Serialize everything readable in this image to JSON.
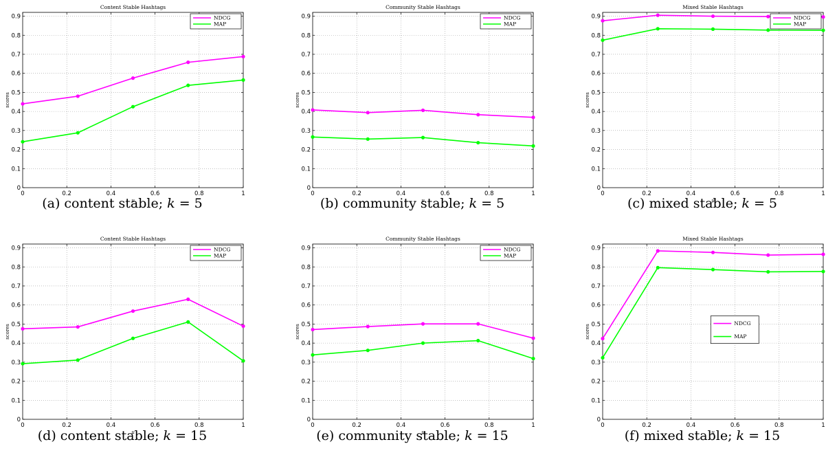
{
  "chart_data": [
    {
      "type": "line",
      "title": "Content Stable Hashtags",
      "xlabel": "μ",
      "ylabel": "scores",
      "x": [
        0,
        0.25,
        0.5,
        0.75,
        1
      ],
      "xlim": [
        0,
        1
      ],
      "ylim": [
        0,
        0.92
      ],
      "xticks": [
        "0",
        "0.2",
        "0.4",
        "0.6",
        "0.8",
        "1"
      ],
      "yticks": [
        "0",
        "0.1",
        "0.2",
        "0.3",
        "0.4",
        "0.5",
        "0.6",
        "0.7",
        "0.8",
        "0.9"
      ],
      "grid": true,
      "legend_position": "top-right",
      "series": [
        {
          "name": "NDCG",
          "color": "#ff00ff",
          "values": [
            0.44,
            0.48,
            0.575,
            0.658,
            0.688
          ]
        },
        {
          "name": "MAP",
          "color": "#00ff00",
          "values": [
            0.241,
            0.288,
            0.425,
            0.537,
            0.565
          ]
        }
      ],
      "caption": {
        "label": "(a) content stable;",
        "var": "k",
        "eq": " = 5"
      }
    },
    {
      "type": "line",
      "title": "Community Stable Hashtags",
      "xlabel": "μ",
      "ylabel": "scores",
      "x": [
        0,
        0.25,
        0.5,
        0.75,
        1
      ],
      "xlim": [
        0,
        1
      ],
      "ylim": [
        0,
        0.92
      ],
      "xticks": [
        "0",
        "0.2",
        "0.4",
        "0.6",
        "0.8",
        "1"
      ],
      "yticks": [
        "0",
        "0.1",
        "0.2",
        "0.3",
        "0.4",
        "0.5",
        "0.6",
        "0.7",
        "0.8",
        "0.9"
      ],
      "grid": true,
      "legend_position": "top-right",
      "series": [
        {
          "name": "NDCG",
          "color": "#ff00ff",
          "values": [
            0.408,
            0.394,
            0.406,
            0.383,
            0.369
          ]
        },
        {
          "name": "MAP",
          "color": "#00ff00",
          "values": [
            0.266,
            0.255,
            0.263,
            0.236,
            0.219
          ]
        }
      ],
      "caption": {
        "label": "(b) community stable;",
        "var": "k",
        "eq": " = 5"
      }
    },
    {
      "type": "line",
      "title": "Mixed Stable Hashtags",
      "xlabel": "μ",
      "ylabel": "scores",
      "x": [
        0,
        0.25,
        0.5,
        0.75,
        1
      ],
      "xlim": [
        0,
        1
      ],
      "ylim": [
        0,
        0.92
      ],
      "xticks": [
        "0",
        "0.2",
        "0.4",
        "0.6",
        "0.8",
        "1"
      ],
      "yticks": [
        "0",
        "0.1",
        "0.2",
        "0.3",
        "0.4",
        "0.5",
        "0.6",
        "0.7",
        "0.8",
        "0.9"
      ],
      "grid": true,
      "legend_position": "top-right",
      "series": [
        {
          "name": "NDCG",
          "color": "#ff00ff",
          "values": [
            0.876,
            0.905,
            0.9,
            0.898,
            0.896
          ]
        },
        {
          "name": "MAP",
          "color": "#00ff00",
          "values": [
            0.774,
            0.834,
            0.832,
            0.827,
            0.826
          ]
        }
      ],
      "caption": {
        "label": "(c) mixed stable;",
        "var": "k",
        "eq": " = 5"
      }
    },
    {
      "type": "line",
      "title": "Content Stable Hashtags",
      "xlabel": "μ",
      "ylabel": "scores",
      "x": [
        0,
        0.25,
        0.5,
        0.75,
        1
      ],
      "xlim": [
        0,
        1
      ],
      "ylim": [
        0,
        0.92
      ],
      "xticks": [
        "0",
        "0.2",
        "0.4",
        "0.6",
        "0.8",
        "1"
      ],
      "yticks": [
        "0",
        "0.1",
        "0.2",
        "0.3",
        "0.4",
        "0.5",
        "0.6",
        "0.7",
        "0.8",
        "0.9"
      ],
      "grid": true,
      "legend_position": "top-right",
      "series": [
        {
          "name": "NDCG",
          "color": "#ff00ff",
          "values": [
            0.475,
            0.485,
            0.568,
            0.63,
            0.489
          ]
        },
        {
          "name": "MAP",
          "color": "#00ff00",
          "values": [
            0.292,
            0.311,
            0.425,
            0.511,
            0.307
          ]
        }
      ],
      "caption": {
        "label": "(d) content stable;",
        "var": "k",
        "eq": " = 15"
      }
    },
    {
      "type": "line",
      "title": "Community Stable Hashtags",
      "xlabel": "μ",
      "ylabel": "scores",
      "x": [
        0,
        0.25,
        0.5,
        0.75,
        1
      ],
      "xlim": [
        0,
        1
      ],
      "ylim": [
        0,
        0.92
      ],
      "xticks": [
        "0",
        "0.2",
        "0.4",
        "0.6",
        "0.8",
        "1"
      ],
      "yticks": [
        "0",
        "0.1",
        "0.2",
        "0.3",
        "0.4",
        "0.5",
        "0.6",
        "0.7",
        "0.8",
        "0.9"
      ],
      "grid": true,
      "legend_position": "top-right",
      "series": [
        {
          "name": "NDCG",
          "color": "#ff00ff",
          "values": [
            0.471,
            0.487,
            0.501,
            0.501,
            0.426
          ]
        },
        {
          "name": "MAP",
          "color": "#00ff00",
          "values": [
            0.338,
            0.362,
            0.4,
            0.413,
            0.319
          ]
        }
      ],
      "caption": {
        "label": "(e) community stable;",
        "var": "k",
        "eq": " = 15"
      }
    },
    {
      "type": "line",
      "title": "Mixed Stable Hashtags",
      "xlabel": "μ",
      "ylabel": "scores",
      "x": [
        0,
        0.25,
        0.5,
        0.75,
        1
      ],
      "xlim": [
        0,
        1
      ],
      "ylim": [
        0,
        0.92
      ],
      "xticks": [
        "0",
        "0.2",
        "0.4",
        "0.6",
        "0.8",
        "1"
      ],
      "yticks": [
        "0",
        "0.1",
        "0.2",
        "0.3",
        "0.4",
        "0.5",
        "0.6",
        "0.7",
        "0.8",
        "0.9"
      ],
      "grid": true,
      "legend_position": "center",
      "series": [
        {
          "name": "NDCG",
          "color": "#ff00ff",
          "values": [
            0.424,
            0.884,
            0.876,
            0.862,
            0.866
          ]
        },
        {
          "name": "MAP",
          "color": "#00ff00",
          "values": [
            0.323,
            0.796,
            0.786,
            0.774,
            0.776
          ]
        }
      ],
      "caption": {
        "label": "(f) mixed stable;",
        "var": "k",
        "eq": " = 15"
      }
    }
  ]
}
